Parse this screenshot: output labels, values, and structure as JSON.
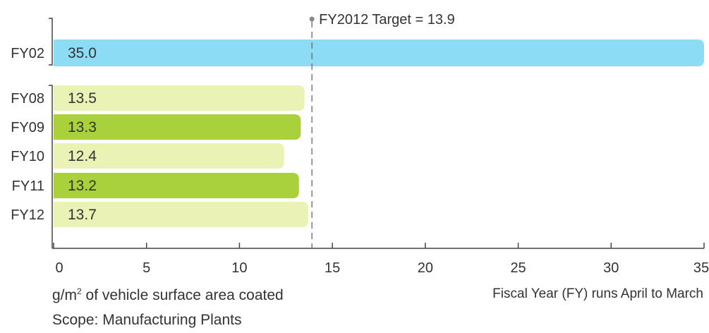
{
  "chart_data": {
    "type": "bar",
    "orientation": "horizontal",
    "categories": [
      "FY02",
      "FY08",
      "FY09",
      "FY10",
      "FY11",
      "FY12"
    ],
    "values": [
      35.0,
      13.5,
      13.3,
      12.4,
      13.2,
      13.7
    ],
    "value_labels": [
      "35.0",
      "13.5",
      "13.3",
      "12.4",
      "13.2",
      "13.7"
    ],
    "bar_colors": [
      "#8ddcf5",
      "#ebf2b5",
      "#a8d13c",
      "#ebf2b5",
      "#a8d13c",
      "#ebf2b5"
    ],
    "xlim": [
      0,
      35
    ],
    "xticks": [
      0,
      5,
      10,
      15,
      20,
      25,
      30,
      35
    ],
    "xtick_labels": [
      "0",
      "5",
      "10",
      "15",
      "20",
      "25",
      "30",
      "35"
    ],
    "target": {
      "value": 13.9,
      "label": "FY2012 Target = 13.9",
      "style": "dashed"
    },
    "grid": false,
    "title": "",
    "xlabel": "",
    "ylabel": ""
  },
  "footnotes": {
    "units_prefix": "g/m",
    "units_superscript": "2",
    "units_suffix": " of vehicle surface area coated",
    "fiscal_note": "Fiscal Year (FY) runs April to March",
    "scope": "Scope: Manufacturing Plants"
  },
  "colors": {
    "axis": "#444444",
    "target_line": "#666666",
    "text": "#333333"
  }
}
